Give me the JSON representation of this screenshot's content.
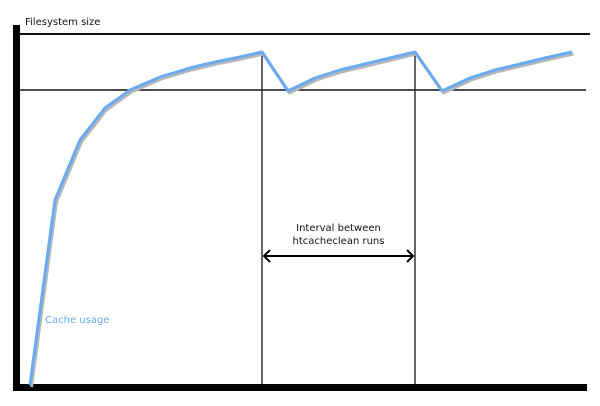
{
  "diagram": {
    "y_axis_label": "Filesystem size",
    "interval_label_line1": "Interval between",
    "interval_label_line2": "htcacheclean runs",
    "series_label": "Cache usage",
    "colors": {
      "curve": "#6aaaf0",
      "curve_shadow": "#b0b0b0",
      "lines": "#111111",
      "series_label": "#6aaaf0"
    }
  }
}
